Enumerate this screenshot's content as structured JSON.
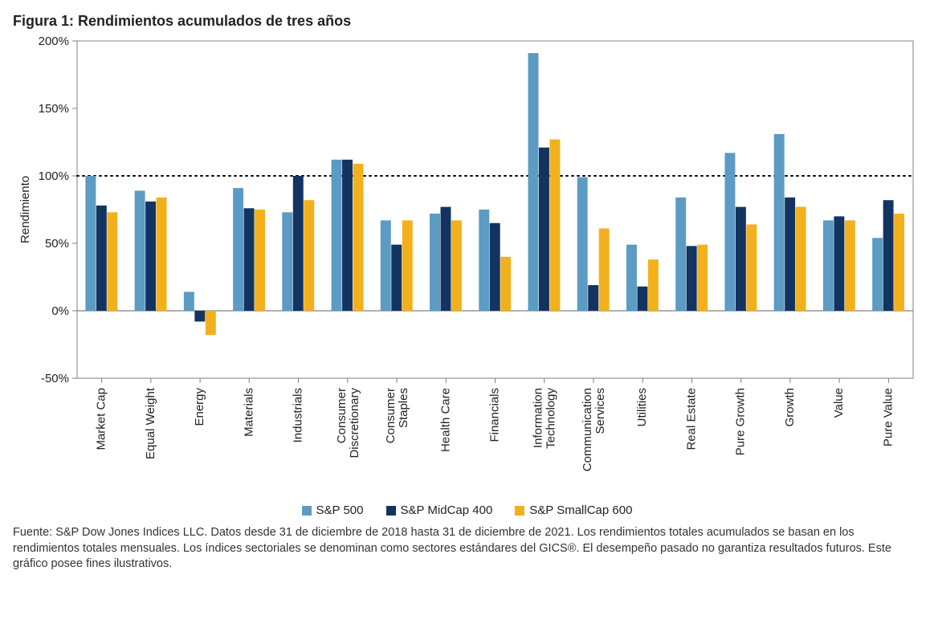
{
  "title": "Figura 1: Rendimientos acumulados de tres años",
  "source": "Fuente: S&P Dow Jones Indices LLC. Datos desde 31 de diciembre de 2018 hasta 31 de diciembre de 2021. Los rendimientos totales acumulados se basan en los rendimientos totales mensuales. Los índices sectoriales se denominan como sectores estándares del GICS®. El desempeño pasado no garantiza resultados futuros. Este gráfico posee fines ilustrativos.",
  "chart": {
    "type": "bar",
    "ylabel": "Rendimiento",
    "ylim": [
      -50,
      200
    ],
    "ytick_step": 50,
    "ytick_format_suffix": "%",
    "reference_line": 100,
    "reference_line_style": "dotted",
    "reference_line_color": "#000000",
    "axis_color": "#808080",
    "border_color": "#808080",
    "grid_color": "#808080",
    "zero_line_color": "#808080",
    "background_color": "#ffffff",
    "label_fontsize": 15,
    "tick_fontsize": 15,
    "bar_group_width": 0.66,
    "categories": [
      "Market Cap",
      "Equal Weight",
      "Energy",
      "Materials",
      "Industrials",
      "Consumer Discretionary",
      "Consumer Staples",
      "Health Care",
      "Financials",
      "Information Technology",
      "Communication Services",
      "Utilities",
      "Real Estate",
      "Pure Growth",
      "Growth",
      "Value",
      "Pure Value"
    ],
    "series": [
      {
        "name": "S&P 500",
        "color": "#5b9bc4",
        "values": [
          100,
          89,
          14,
          91,
          73,
          112,
          67,
          72,
          75,
          191,
          99,
          49,
          84,
          117,
          131,
          67,
          54
        ]
      },
      {
        "name": "S&P MidCap 400",
        "color": "#133461",
        "values": [
          78,
          81,
          -8,
          76,
          100,
          112,
          49,
          77,
          65,
          121,
          19,
          18,
          48,
          77,
          84,
          70,
          82
        ]
      },
      {
        "name": "S&P SmallCap 600",
        "color": "#f2b11c",
        "values": [
          73,
          84,
          -18,
          75,
          82,
          109,
          67,
          67,
          40,
          127,
          61,
          38,
          49,
          64,
          77,
          67,
          72
        ]
      }
    ]
  },
  "legend": {
    "items": [
      {
        "label": "S&P 500",
        "color": "#5b9bc4"
      },
      {
        "label": "S&P MidCap 400",
        "color": "#133461"
      },
      {
        "label": "S&P SmallCap 600",
        "color": "#f2b11c"
      }
    ]
  }
}
